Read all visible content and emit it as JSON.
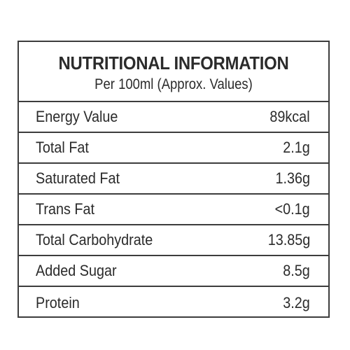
{
  "label": {
    "title": "NUTRITIONAL INFORMATION",
    "subtitle": "Per 100ml (Approx. Values)",
    "rows": [
      {
        "nutrient": "Energy Value",
        "amount": "89kcal"
      },
      {
        "nutrient": "Total Fat",
        "amount": "2.1g"
      },
      {
        "nutrient": "Saturated Fat",
        "amount": "1.36g"
      },
      {
        "nutrient": "Trans Fat",
        "amount": "<0.1g"
      },
      {
        "nutrient": "Total Carbohydrate",
        "amount": "13.85g"
      },
      {
        "nutrient": "Added Sugar",
        "amount": "8.5g"
      },
      {
        "nutrient": "Protein",
        "amount": "3.2g"
      }
    ]
  }
}
